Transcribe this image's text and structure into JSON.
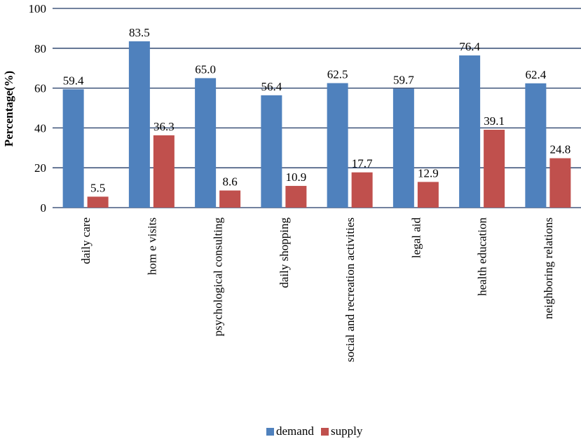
{
  "chart_data": {
    "type": "bar",
    "title": "",
    "xlabel": "",
    "ylabel": "Percentage(%)",
    "ylim": [
      0,
      100
    ],
    "yticks": [
      0,
      20,
      40,
      60,
      80,
      100
    ],
    "grid": true,
    "legend_position": "bottom",
    "categories": [
      "daily care",
      "hom e visits",
      "psychological consulting",
      "daily shopping",
      "social and recreation activities",
      "legal aid",
      "health education",
      "neighboring relations"
    ],
    "series": [
      {
        "name": "demand",
        "color": "#4f81bd",
        "values": [
          59.4,
          83.5,
          65.0,
          56.4,
          62.5,
          59.7,
          76.4,
          62.4
        ],
        "labels": [
          "59.4",
          "83.5",
          "65.0",
          "56.4",
          "62.5",
          "59.7",
          "76.4",
          "62.4"
        ]
      },
      {
        "name": "supply",
        "color": "#c0504d",
        "values": [
          5.5,
          36.3,
          8.6,
          10.9,
          17.7,
          12.9,
          39.1,
          24.8
        ],
        "labels": [
          "5.5",
          "36.3",
          "8.6",
          "10.9",
          "17.7",
          "12.9",
          "39.1",
          "24.8"
        ]
      }
    ]
  }
}
